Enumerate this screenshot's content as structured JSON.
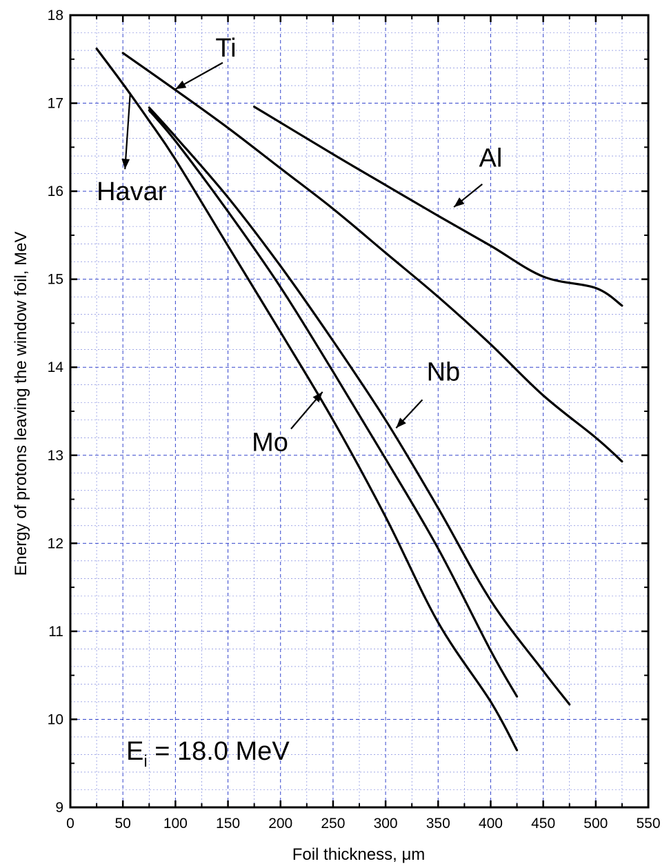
{
  "chart_data": {
    "type": "line",
    "title": "",
    "xlabel": "Foil thickness, μm",
    "ylabel": "Energy of protons leaving the window foil, MeV",
    "xlim": [
      0,
      550
    ],
    "ylim": [
      9,
      18
    ],
    "x_ticks": [
      "0",
      "50",
      "100",
      "150",
      "200",
      "250",
      "300",
      "350",
      "400",
      "450",
      "500",
      "550"
    ],
    "y_ticks": [
      "9",
      "10",
      "11",
      "12",
      "13",
      "14",
      "15",
      "16",
      "17",
      "18"
    ],
    "grid": true,
    "annotation": {
      "main": "E",
      "sub": "i",
      "rest": " = 18.0 MeV"
    },
    "series": [
      {
        "name": "Havar",
        "x": [
          25,
          50,
          75,
          100,
          150,
          200,
          250,
          300,
          350,
          400,
          425
        ],
        "y": [
          17.62,
          17.22,
          16.8,
          16.36,
          15.38,
          14.4,
          13.4,
          12.3,
          11.1,
          10.2,
          9.65
        ]
      },
      {
        "name": "Ti",
        "x": [
          50,
          100,
          150,
          200,
          250,
          300,
          350,
          400,
          450,
          500,
          525
        ],
        "y": [
          17.57,
          17.15,
          16.72,
          16.26,
          15.8,
          15.3,
          14.8,
          14.26,
          13.68,
          13.2,
          12.93
        ]
      },
      {
        "name": "Al",
        "x": [
          175,
          250,
          300,
          350,
          400,
          450,
          500,
          525
        ],
        "y": [
          16.96,
          16.42,
          16.07,
          15.72,
          15.38,
          15.03,
          14.9,
          14.7
        ]
      },
      {
        "name": "Mo",
        "x": [
          75,
          100,
          150,
          200,
          250,
          300,
          350,
          400,
          425
        ],
        "y": [
          16.92,
          16.57,
          15.77,
          14.91,
          13.95,
          12.96,
          11.94,
          10.78,
          10.26
        ]
      },
      {
        "name": "Nb",
        "x": [
          75,
          100,
          150,
          200,
          250,
          300,
          350,
          400,
          450,
          475
        ],
        "y": [
          16.95,
          16.62,
          15.93,
          15.15,
          14.3,
          13.4,
          12.4,
          11.35,
          10.55,
          10.17
        ]
      }
    ]
  }
}
